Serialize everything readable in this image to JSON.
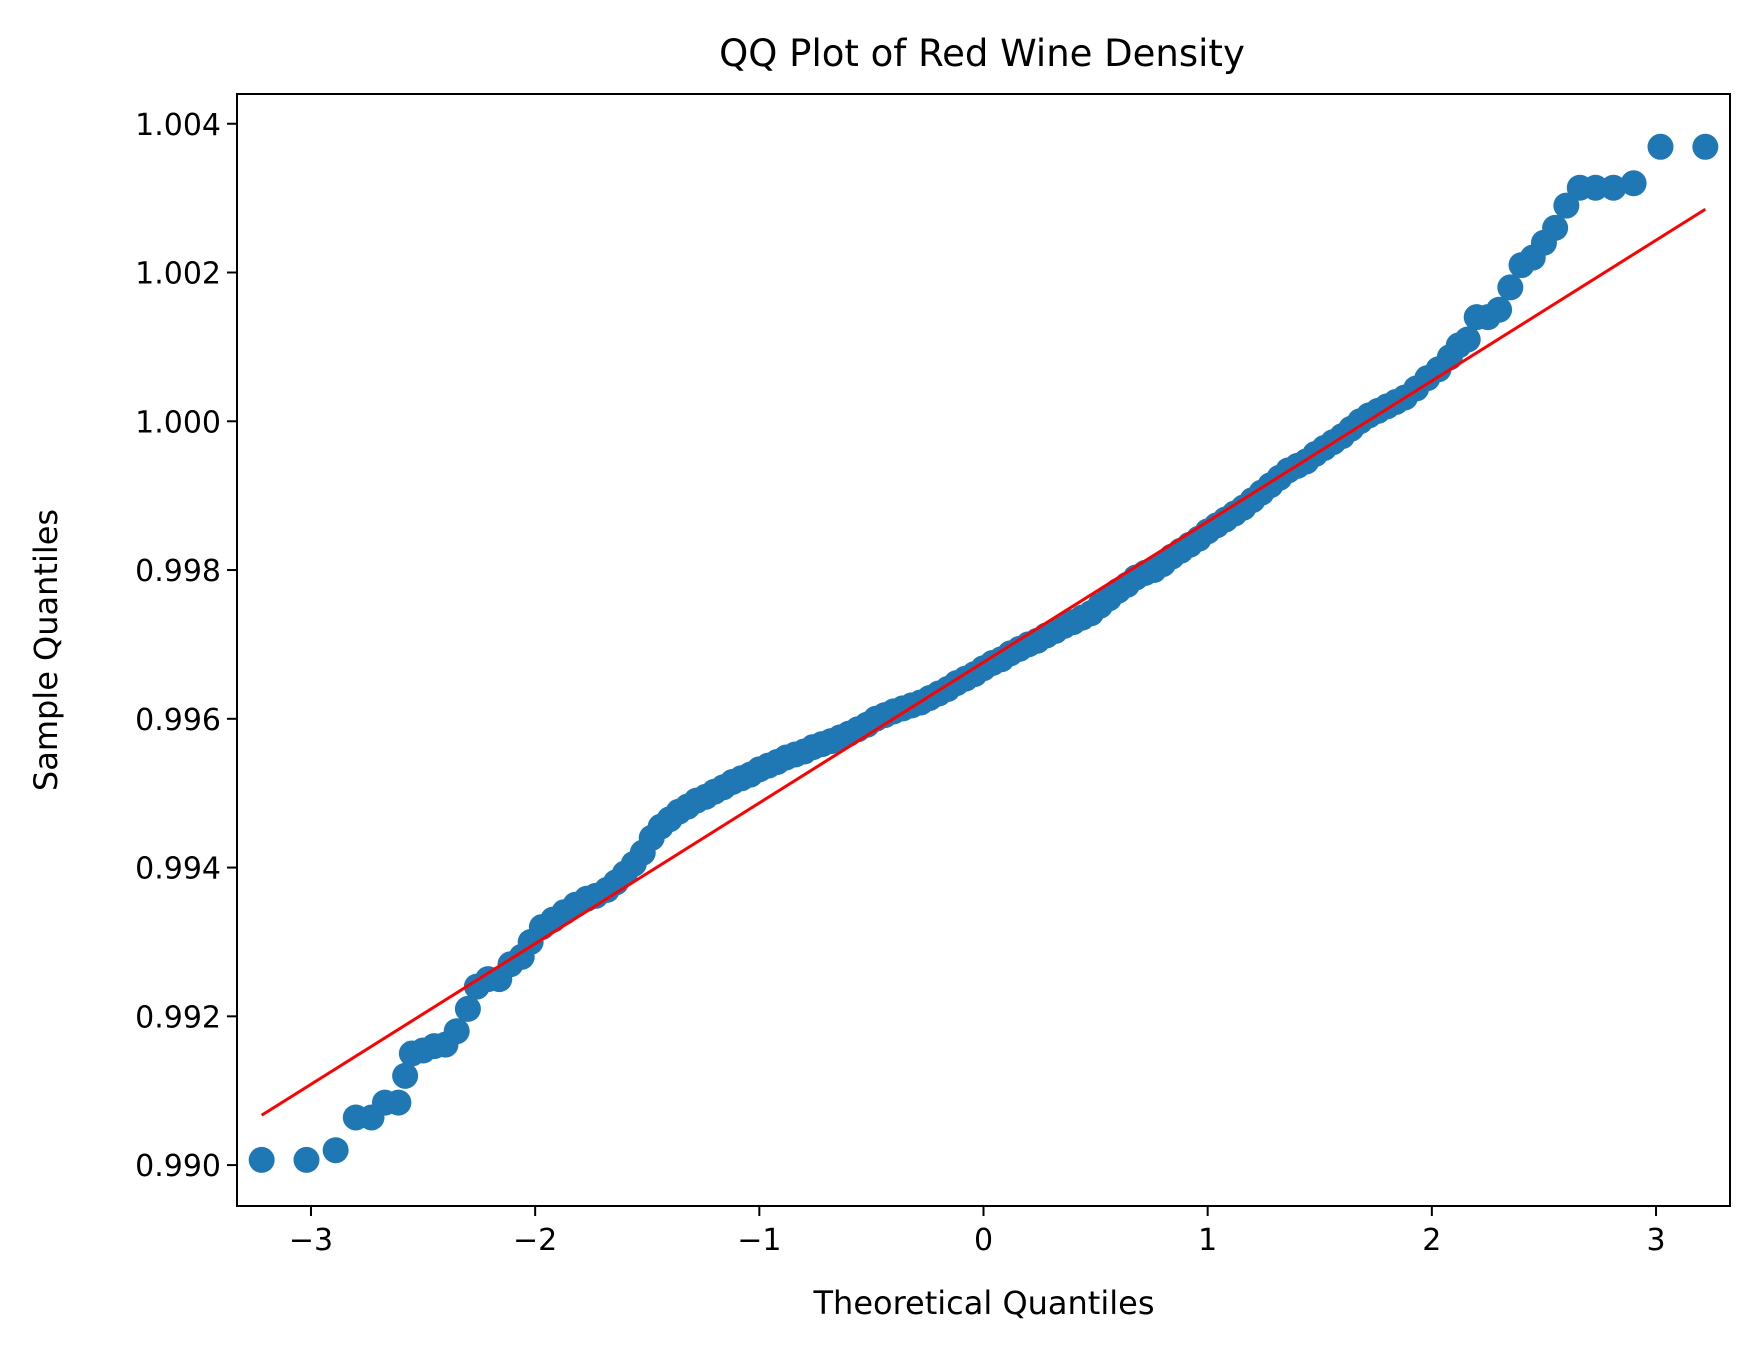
{
  "chart_data": {
    "type": "scatter",
    "title": "QQ Plot of Red Wine Density",
    "xlabel": "Theoretical Quantiles",
    "ylabel": "Sample Quantiles",
    "xlim": [
      -3.33,
      3.33
    ],
    "ylim": [
      0.98945,
      1.0044
    ],
    "grid": false,
    "x_ticks": [
      -3,
      -2,
      -1,
      0,
      1,
      2,
      3
    ],
    "x_tick_labels": [
      "−3",
      "−2",
      "−1",
      "0",
      "1",
      "2",
      "3"
    ],
    "y_ticks": [
      0.99,
      0.992,
      0.994,
      0.996,
      0.998,
      1.0,
      1.002,
      1.004
    ],
    "y_tick_labels": [
      "0.990",
      "0.992",
      "0.994",
      "0.996",
      "0.998",
      "1.000",
      "1.002",
      "1.004"
    ],
    "colors": {
      "points": "#1f77b4",
      "line": "#ff0000"
    },
    "reference_line": {
      "x": [
        -3.22,
        3.22
      ],
      "y": [
        0.99067,
        1.00285
      ]
    },
    "series": [
      {
        "points": [
          [
            -3.22,
            0.99007
          ],
          [
            -3.02,
            0.99007
          ],
          [
            -2.89,
            0.9902
          ],
          [
            -2.8,
            0.99064
          ],
          [
            -2.73,
            0.99064
          ],
          [
            -2.67,
            0.99084
          ],
          [
            -2.61,
            0.99084
          ],
          [
            -2.58,
            0.9912
          ],
          [
            -2.55,
            0.9915
          ],
          [
            -2.5,
            0.99154
          ],
          [
            -2.45,
            0.9916
          ],
          [
            -2.4,
            0.99162
          ],
          [
            -2.35,
            0.9918
          ],
          [
            -2.3,
            0.9921
          ],
          [
            -2.26,
            0.9924
          ],
          [
            -2.21,
            0.9925
          ],
          [
            -2.16,
            0.9925
          ],
          [
            -2.11,
            0.9927
          ],
          [
            -2.06,
            0.9928
          ],
          [
            -2.02,
            0.993
          ],
          [
            -1.97,
            0.9932
          ],
          [
            -1.92,
            0.9933
          ],
          [
            -1.87,
            0.9934
          ],
          [
            -1.82,
            0.9935
          ],
          [
            -1.77,
            0.99358
          ],
          [
            -1.73,
            0.99362
          ],
          [
            -1.68,
            0.9937
          ],
          [
            -1.64,
            0.9938
          ],
          [
            -1.6,
            0.99392
          ],
          [
            -1.56,
            0.99405
          ],
          [
            -1.52,
            0.9942
          ],
          [
            -1.48,
            0.9944
          ],
          [
            -1.44,
            0.99455
          ],
          [
            -1.4,
            0.99465
          ],
          [
            -1.36,
            0.99475
          ],
          [
            -1.32,
            0.99482
          ],
          [
            -1.28,
            0.9949
          ],
          [
            -1.24,
            0.99495
          ],
          [
            -1.2,
            0.99502
          ],
          [
            -1.16,
            0.99508
          ],
          [
            -1.12,
            0.99515
          ],
          [
            -1.08,
            0.9952
          ],
          [
            -1.04,
            0.99525
          ],
          [
            -1.0,
            0.99532
          ],
          [
            -0.96,
            0.99537
          ],
          [
            -0.92,
            0.99542
          ],
          [
            -0.88,
            0.99548
          ],
          [
            -0.84,
            0.99552
          ],
          [
            -0.8,
            0.99556
          ],
          [
            -0.76,
            0.99562
          ],
          [
            -0.72,
            0.99566
          ],
          [
            -0.68,
            0.9957
          ],
          [
            -0.64,
            0.99575
          ],
          [
            -0.6,
            0.9958
          ],
          [
            -0.56,
            0.99586
          ],
          [
            -0.52,
            0.99592
          ],
          [
            -0.48,
            0.996
          ],
          [
            -0.44,
            0.99605
          ],
          [
            -0.4,
            0.9961
          ],
          [
            -0.36,
            0.99614
          ],
          [
            -0.32,
            0.99618
          ],
          [
            -0.28,
            0.99622
          ],
          [
            -0.24,
            0.99628
          ],
          [
            -0.2,
            0.99634
          ],
          [
            -0.16,
            0.9964
          ],
          [
            -0.12,
            0.99648
          ],
          [
            -0.08,
            0.99654
          ],
          [
            -0.04,
            0.9966
          ],
          [
            0.0,
            0.99668
          ],
          [
            0.04,
            0.99675
          ],
          [
            0.08,
            0.9968
          ],
          [
            0.12,
            0.99688
          ],
          [
            0.16,
            0.99694
          ],
          [
            0.2,
            0.997
          ],
          [
            0.24,
            0.99705
          ],
          [
            0.28,
            0.99712
          ],
          [
            0.32,
            0.99718
          ],
          [
            0.36,
            0.99725
          ],
          [
            0.4,
            0.9973
          ],
          [
            0.44,
            0.99736
          ],
          [
            0.48,
            0.99742
          ],
          [
            0.52,
            0.99752
          ],
          [
            0.56,
            0.99762
          ],
          [
            0.6,
            0.99772
          ],
          [
            0.64,
            0.9978
          ],
          [
            0.68,
            0.9979
          ],
          [
            0.72,
            0.99796
          ],
          [
            0.76,
            0.998
          ],
          [
            0.8,
            0.99808
          ],
          [
            0.84,
            0.99818
          ],
          [
            0.88,
            0.99826
          ],
          [
            0.92,
            0.99834
          ],
          [
            0.96,
            0.99842
          ],
          [
            1.0,
            0.99852
          ],
          [
            1.04,
            0.9986
          ],
          [
            1.08,
            0.99868
          ],
          [
            1.12,
            0.99876
          ],
          [
            1.16,
            0.99884
          ],
          [
            1.2,
            0.99894
          ],
          [
            1.24,
            0.99904
          ],
          [
            1.28,
            0.99914
          ],
          [
            1.32,
            0.99924
          ],
          [
            1.36,
            0.99934
          ],
          [
            1.4,
            0.9994
          ],
          [
            1.44,
            0.99946
          ],
          [
            1.48,
            0.99956
          ],
          [
            1.52,
            0.99964
          ],
          [
            1.56,
            0.99972
          ],
          [
            1.6,
            0.9998
          ],
          [
            1.64,
            0.9999
          ],
          [
            1.68,
            1.0
          ],
          [
            1.72,
            1.00008
          ],
          [
            1.76,
            1.00014
          ],
          [
            1.8,
            1.0002
          ],
          [
            1.84,
            1.00026
          ],
          [
            1.88,
            1.00032
          ],
          [
            1.93,
            1.00044
          ],
          [
            1.98,
            1.00058
          ],
          [
            2.03,
            1.0007
          ],
          [
            2.08,
            1.00086
          ],
          [
            2.12,
            1.00102
          ],
          [
            2.16,
            1.0011
          ],
          [
            2.2,
            1.0014
          ],
          [
            2.25,
            1.0014
          ],
          [
            2.3,
            1.0015
          ],
          [
            2.35,
            1.0018
          ],
          [
            2.4,
            1.0021
          ],
          [
            2.45,
            1.0022
          ],
          [
            2.5,
            1.0024
          ],
          [
            2.55,
            1.0026
          ],
          [
            2.6,
            1.0029
          ],
          [
            2.66,
            1.00314
          ],
          [
            2.73,
            1.00314
          ],
          [
            2.81,
            1.00314
          ],
          [
            2.9,
            1.0032
          ],
          [
            3.02,
            1.00369
          ],
          [
            3.22,
            1.00369
          ]
        ]
      }
    ]
  }
}
